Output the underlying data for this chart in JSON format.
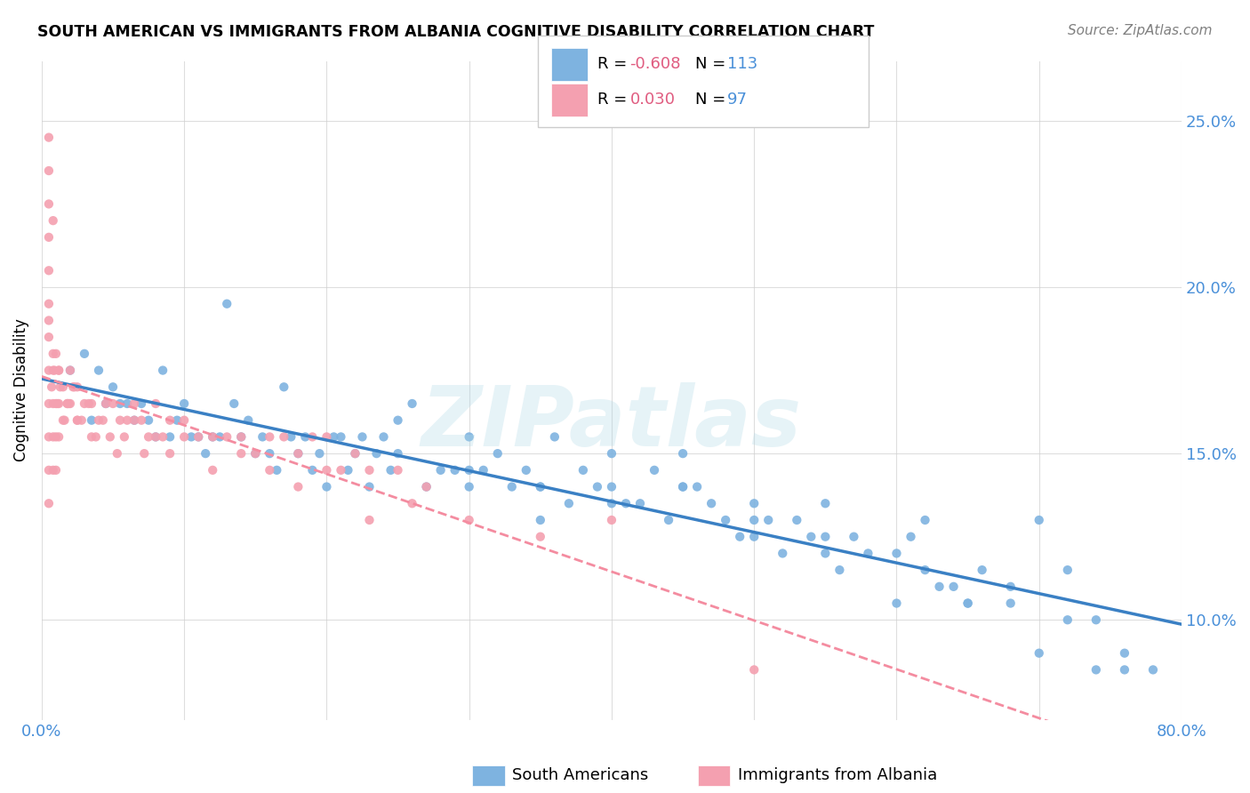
{
  "title": "SOUTH AMERICAN VS IMMIGRANTS FROM ALBANIA COGNITIVE DISABILITY CORRELATION CHART",
  "source": "Source: ZipAtlas.com",
  "ylabel": "Cognitive Disability",
  "yticks": [
    "10.0%",
    "15.0%",
    "20.0%",
    "25.0%"
  ],
  "ytick_vals": [
    0.1,
    0.15,
    0.2,
    0.25
  ],
  "xlim": [
    0.0,
    0.8
  ],
  "ylim": [
    0.07,
    0.268
  ],
  "blue_color": "#7eb3e0",
  "pink_color": "#f4a0b0",
  "blue_line_color": "#3a80c4",
  "pink_line_color": "#f48ca0",
  "R_blue": -0.608,
  "N_blue": 113,
  "R_pink": 0.03,
  "N_pink": 97,
  "legend_R_color": "#e05c80",
  "legend_N_color": "#4a90d9",
  "watermark": "ZIPatlas",
  "blue_points_x": [
    0.02,
    0.03,
    0.035,
    0.04,
    0.045,
    0.05,
    0.055,
    0.06,
    0.065,
    0.07,
    0.075,
    0.08,
    0.085,
    0.09,
    0.095,
    0.1,
    0.105,
    0.11,
    0.115,
    0.12,
    0.125,
    0.13,
    0.135,
    0.14,
    0.145,
    0.15,
    0.155,
    0.16,
    0.165,
    0.17,
    0.175,
    0.18,
    0.185,
    0.19,
    0.195,
    0.2,
    0.205,
    0.21,
    0.215,
    0.22,
    0.225,
    0.23,
    0.235,
    0.24,
    0.245,
    0.25,
    0.26,
    0.27,
    0.28,
    0.29,
    0.3,
    0.31,
    0.32,
    0.33,
    0.34,
    0.35,
    0.36,
    0.37,
    0.38,
    0.39,
    0.4,
    0.41,
    0.42,
    0.43,
    0.44,
    0.45,
    0.46,
    0.47,
    0.48,
    0.49,
    0.5,
    0.51,
    0.52,
    0.53,
    0.54,
    0.55,
    0.56,
    0.57,
    0.58,
    0.6,
    0.61,
    0.62,
    0.63,
    0.64,
    0.65,
    0.66,
    0.68,
    0.7,
    0.72,
    0.74,
    0.76,
    0.3,
    0.35,
    0.4,
    0.45,
    0.5,
    0.55,
    0.6,
    0.62,
    0.65,
    0.68,
    0.7,
    0.72,
    0.74,
    0.76,
    0.78,
    0.25,
    0.3,
    0.35,
    0.4,
    0.45,
    0.5,
    0.55
  ],
  "blue_points_y": [
    0.175,
    0.18,
    0.16,
    0.175,
    0.165,
    0.17,
    0.165,
    0.165,
    0.16,
    0.165,
    0.16,
    0.155,
    0.175,
    0.155,
    0.16,
    0.165,
    0.155,
    0.155,
    0.15,
    0.155,
    0.155,
    0.195,
    0.165,
    0.155,
    0.16,
    0.15,
    0.155,
    0.15,
    0.145,
    0.17,
    0.155,
    0.15,
    0.155,
    0.145,
    0.15,
    0.14,
    0.155,
    0.155,
    0.145,
    0.15,
    0.155,
    0.14,
    0.15,
    0.155,
    0.145,
    0.15,
    0.165,
    0.14,
    0.145,
    0.145,
    0.14,
    0.145,
    0.15,
    0.14,
    0.145,
    0.14,
    0.155,
    0.135,
    0.145,
    0.14,
    0.15,
    0.135,
    0.135,
    0.145,
    0.13,
    0.14,
    0.14,
    0.135,
    0.13,
    0.125,
    0.135,
    0.13,
    0.12,
    0.13,
    0.125,
    0.12,
    0.115,
    0.125,
    0.12,
    0.105,
    0.125,
    0.115,
    0.11,
    0.11,
    0.105,
    0.115,
    0.105,
    0.13,
    0.115,
    0.1,
    0.085,
    0.155,
    0.14,
    0.135,
    0.14,
    0.13,
    0.125,
    0.12,
    0.13,
    0.105,
    0.11,
    0.09,
    0.1,
    0.085,
    0.09,
    0.085,
    0.16,
    0.145,
    0.13,
    0.14,
    0.15,
    0.125,
    0.135
  ],
  "pink_points_x": [
    0.005,
    0.005,
    0.005,
    0.005,
    0.005,
    0.005,
    0.005,
    0.005,
    0.005,
    0.005,
    0.005,
    0.005,
    0.008,
    0.008,
    0.008,
    0.008,
    0.008,
    0.01,
    0.01,
    0.01,
    0.01,
    0.012,
    0.012,
    0.012,
    0.015,
    0.015,
    0.018,
    0.02,
    0.02,
    0.022,
    0.025,
    0.025,
    0.03,
    0.035,
    0.04,
    0.045,
    0.05,
    0.055,
    0.06,
    0.065,
    0.07,
    0.075,
    0.08,
    0.085,
    0.09,
    0.1,
    0.11,
    0.12,
    0.13,
    0.14,
    0.15,
    0.16,
    0.17,
    0.18,
    0.19,
    0.2,
    0.21,
    0.22,
    0.23,
    0.25,
    0.27,
    0.3,
    0.35,
    0.4,
    0.5,
    0.005,
    0.007,
    0.009,
    0.011,
    0.013,
    0.016,
    0.019,
    0.023,
    0.028,
    0.033,
    0.038,
    0.043,
    0.048,
    0.053,
    0.058,
    0.065,
    0.072,
    0.08,
    0.09,
    0.1,
    0.12,
    0.14,
    0.16,
    0.18,
    0.2,
    0.23,
    0.26,
    0.008,
    0.012,
    0.018,
    0.025,
    0.035
  ],
  "pink_points_y": [
    0.245,
    0.235,
    0.225,
    0.215,
    0.205,
    0.195,
    0.185,
    0.175,
    0.165,
    0.155,
    0.145,
    0.135,
    0.22,
    0.175,
    0.165,
    0.155,
    0.145,
    0.18,
    0.165,
    0.155,
    0.145,
    0.175,
    0.165,
    0.155,
    0.17,
    0.16,
    0.165,
    0.175,
    0.165,
    0.17,
    0.17,
    0.16,
    0.165,
    0.165,
    0.16,
    0.165,
    0.165,
    0.16,
    0.16,
    0.165,
    0.16,
    0.155,
    0.165,
    0.155,
    0.16,
    0.16,
    0.155,
    0.155,
    0.155,
    0.155,
    0.15,
    0.155,
    0.155,
    0.15,
    0.155,
    0.155,
    0.145,
    0.15,
    0.145,
    0.145,
    0.14,
    0.13,
    0.125,
    0.13,
    0.085,
    0.19,
    0.17,
    0.175,
    0.165,
    0.17,
    0.16,
    0.165,
    0.17,
    0.16,
    0.165,
    0.155,
    0.16,
    0.155,
    0.15,
    0.155,
    0.16,
    0.15,
    0.155,
    0.15,
    0.155,
    0.145,
    0.15,
    0.145,
    0.14,
    0.145,
    0.13,
    0.135,
    0.18,
    0.175,
    0.165,
    0.16,
    0.155
  ]
}
